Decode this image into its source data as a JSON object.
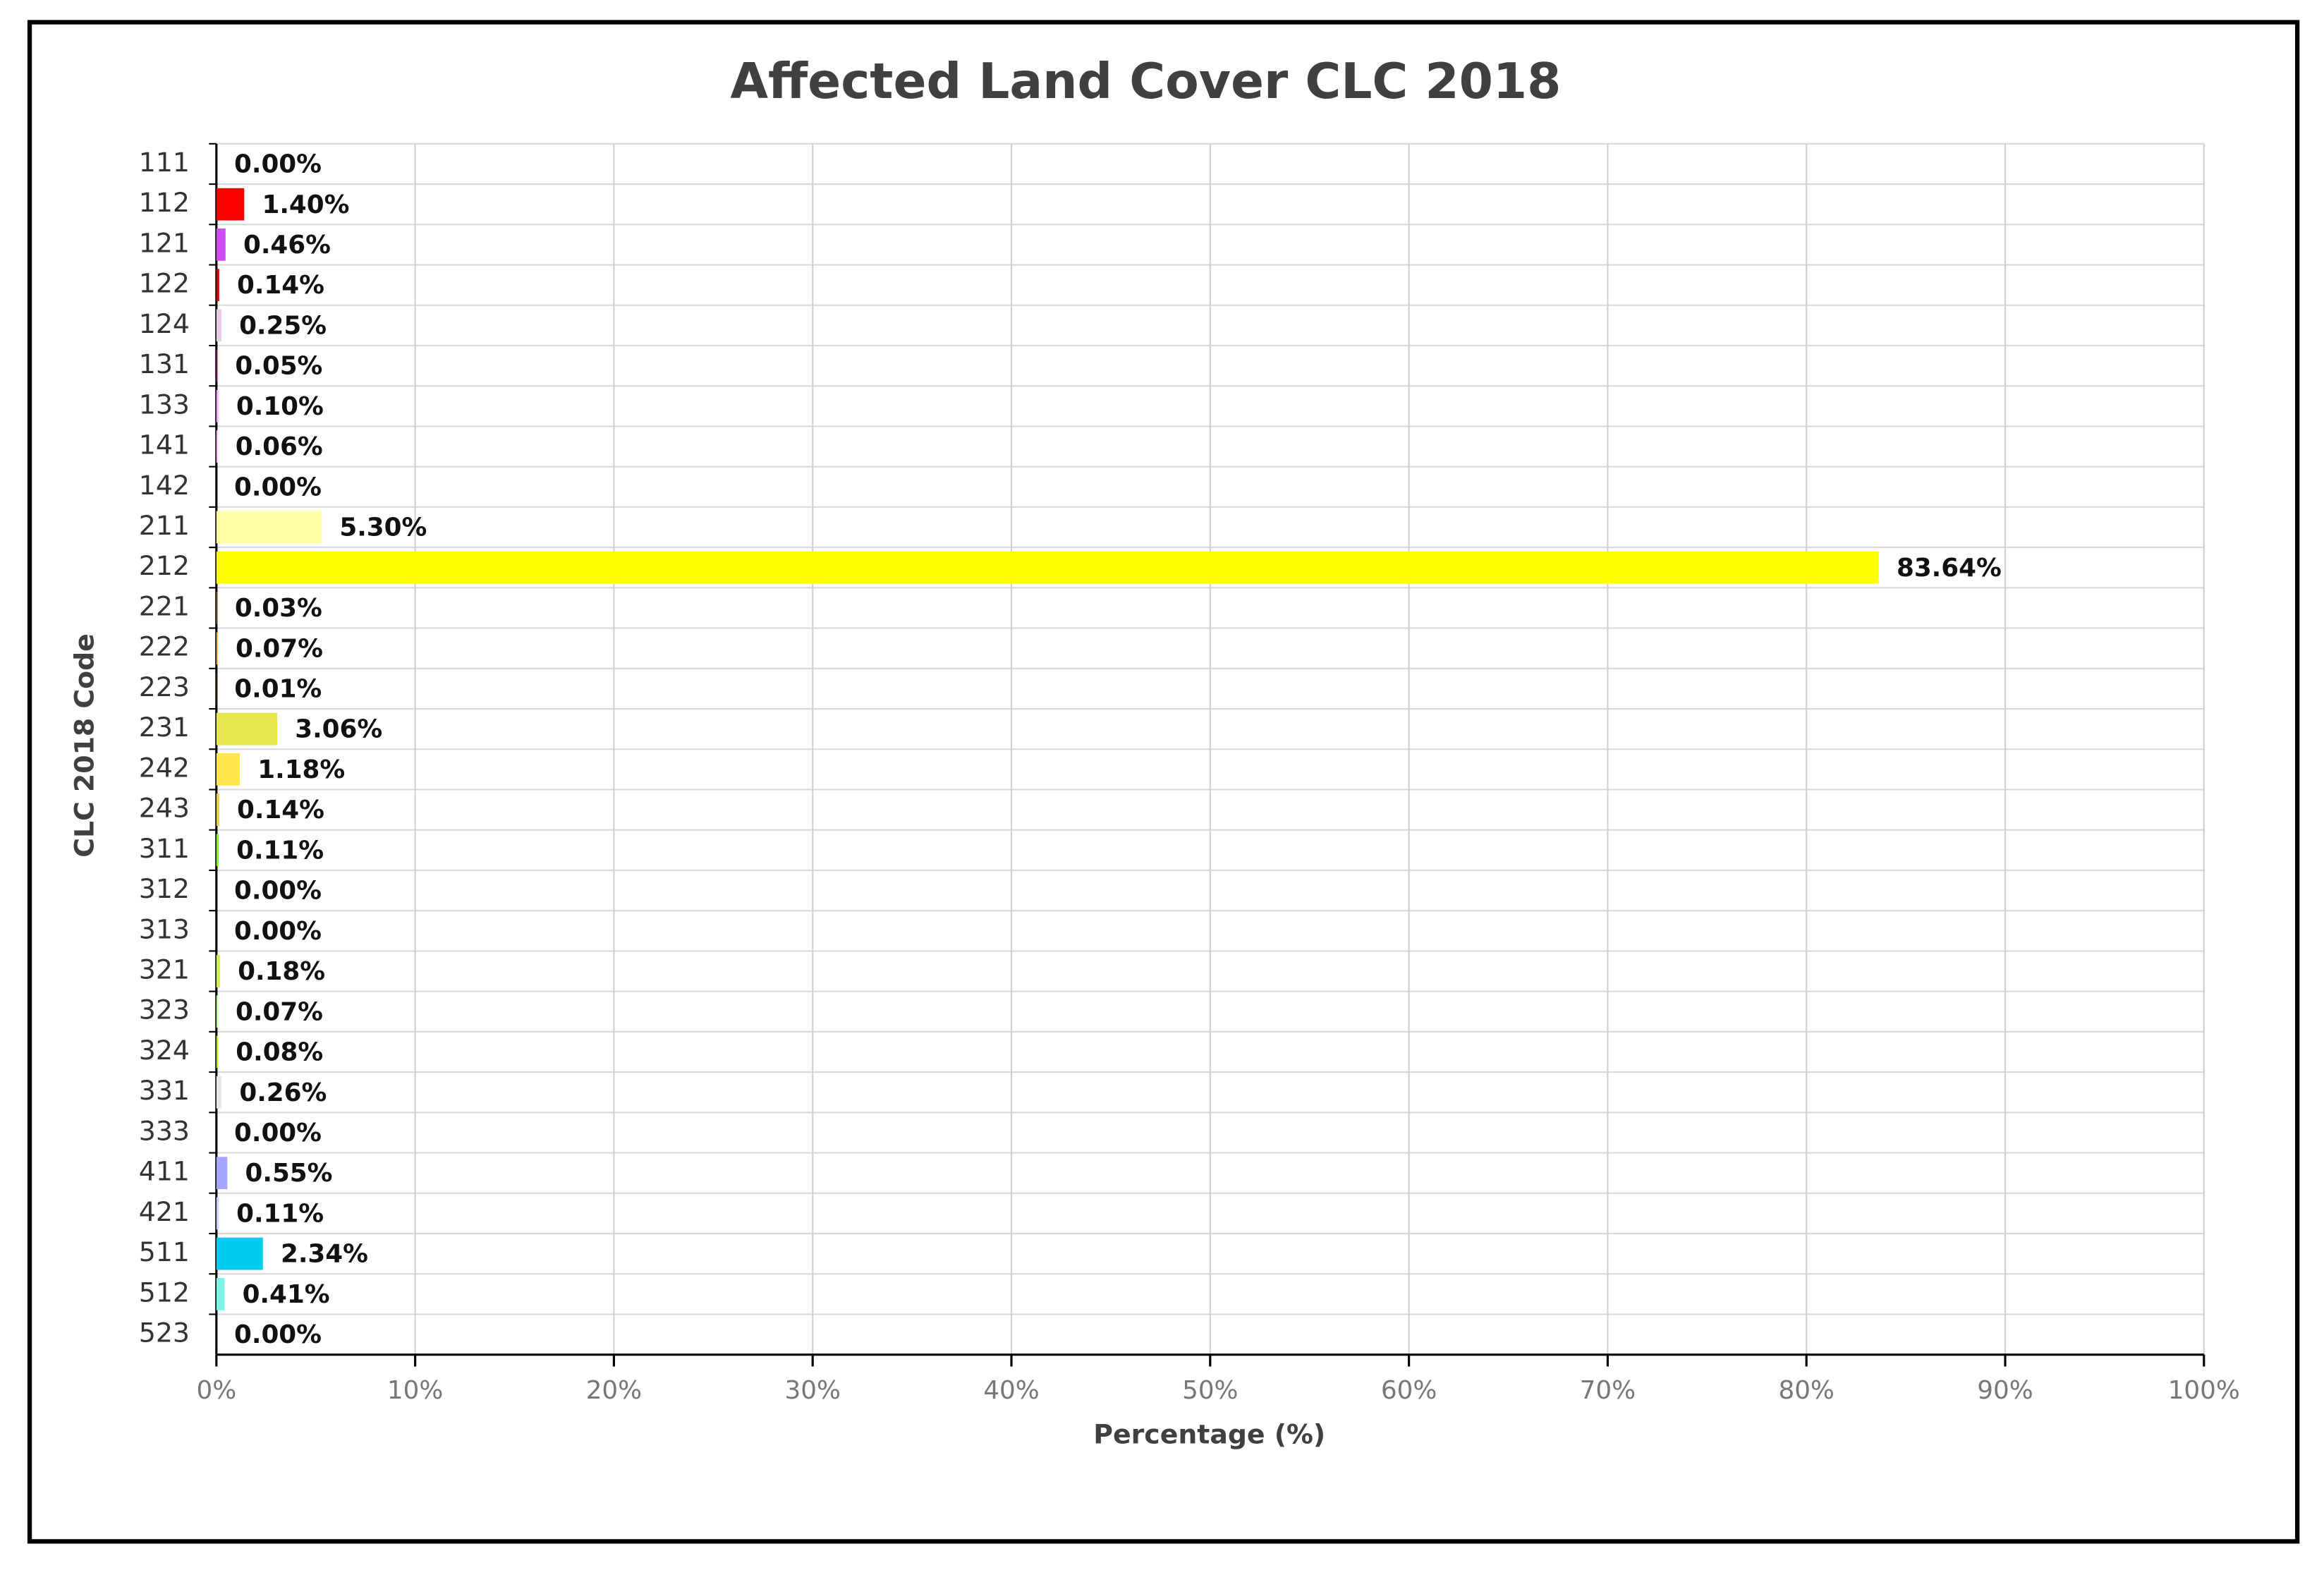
{
  "chart_data": {
    "type": "bar",
    "orientation": "horizontal",
    "title": "Affected Land Cover CLC 2018",
    "x_label": "Percentage (%)",
    "y_label": "CLC 2018 Code",
    "categories": [
      "111",
      "112",
      "121",
      "122",
      "124",
      "131",
      "133",
      "141",
      "142",
      "211",
      "212",
      "221",
      "222",
      "223",
      "231",
      "242",
      "243",
      "311",
      "312",
      "313",
      "321",
      "323",
      "324",
      "331",
      "333",
      "411",
      "421",
      "511",
      "512",
      "523"
    ],
    "values": [
      0.0,
      1.4,
      0.46,
      0.14,
      0.25,
      0.05,
      0.1,
      0.06,
      0.0,
      5.3,
      83.64,
      0.03,
      0.07,
      0.01,
      3.06,
      1.18,
      0.14,
      0.11,
      0.0,
      0.0,
      0.18,
      0.07,
      0.08,
      0.26,
      0.0,
      0.55,
      0.11,
      2.34,
      0.41,
      0.0
    ],
    "value_labels": [
      "0.00%",
      "1.40%",
      "0.46%",
      "0.14%",
      "0.25%",
      "0.05%",
      "0.10%",
      "0.06%",
      "0.00%",
      "5.30%",
      "83.64%",
      "0.03%",
      "0.07%",
      "0.01%",
      "3.06%",
      "1.18%",
      "0.14%",
      "0.11%",
      "0.00%",
      "0.00%",
      "0.18%",
      "0.07%",
      "0.08%",
      "0.26%",
      "0.00%",
      "0.55%",
      "0.11%",
      "2.34%",
      "0.41%",
      "0.00%"
    ],
    "colors": [
      "#e6004d",
      "#ff0000",
      "#cc4df2",
      "#cc0000",
      "#e6cce6",
      "#a600cc",
      "#ffa6ff",
      "#ffa6ff",
      "#ffe6ff",
      "#ffffa8",
      "#ffff00",
      "#e68000",
      "#f2a64d",
      "#e6a600",
      "#e6e64d",
      "#ffe64d",
      "#e6cc4d",
      "#80ff00",
      "#00a600",
      "#4dff00",
      "#ccf24d",
      "#a6ff80",
      "#a6f200",
      "#e6e6e6",
      "#ccffcc",
      "#a6a6ff",
      "#ccccff",
      "#00ccf2",
      "#80f2e6",
      "#e6f2ff"
    ],
    "xlim": [
      0,
      100
    ],
    "xticks": [
      {
        "value": 0,
        "label": "0%"
      },
      {
        "value": 10,
        "label": "10%"
      },
      {
        "value": 20,
        "label": "20%"
      },
      {
        "value": 30,
        "label": "30%"
      },
      {
        "value": 40,
        "label": "40%"
      },
      {
        "value": 50,
        "label": "50%"
      },
      {
        "value": 60,
        "label": "60%"
      },
      {
        "value": 70,
        "label": "70%"
      },
      {
        "value": 80,
        "label": "80%"
      },
      {
        "value": 90,
        "label": "90%"
      },
      {
        "value": 100,
        "label": "100%"
      }
    ],
    "grid": true
  }
}
